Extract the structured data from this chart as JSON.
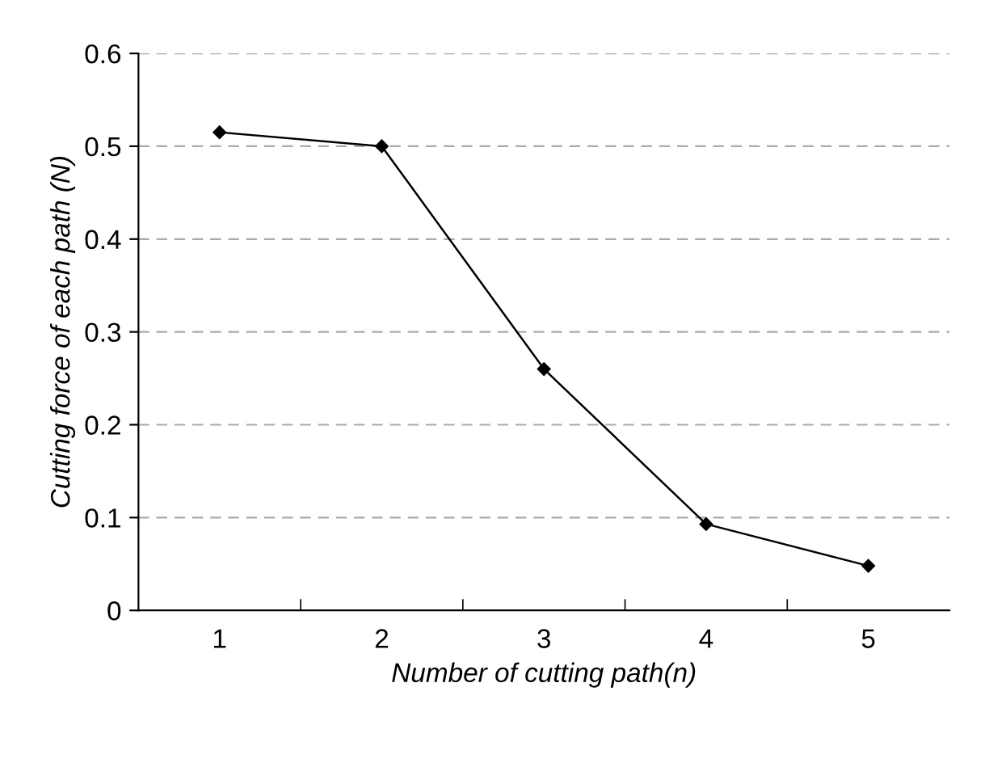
{
  "chart_data": {
    "type": "line",
    "xlabel": "Number of cutting path(n)",
    "ylabel": "Cutting force of each path (N)",
    "categories": [
      "1",
      "2",
      "3",
      "4",
      "5"
    ],
    "series": [
      {
        "color": "#000000",
        "values": [
          0.515,
          0.5,
          0.26,
          0.093,
          0.048
        ]
      }
    ],
    "ylim": [
      0,
      0.6
    ],
    "yticks": [
      0,
      0.1,
      0.2,
      0.3,
      0.4,
      0.5,
      0.6
    ],
    "grid": "y",
    "marker": "diamond",
    "line_style": "solid",
    "legend": false
  }
}
